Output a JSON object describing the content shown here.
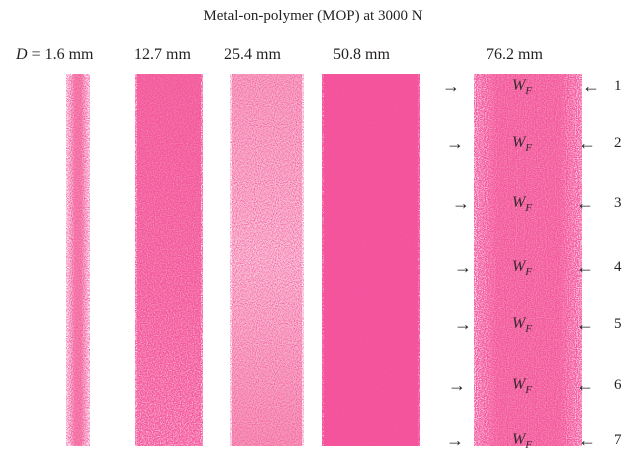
{
  "title": "Metal-on-polymer (MOP) at 3000 N",
  "diameter_labels": [
    {
      "symbol": "D",
      "equals": " = ",
      "value": "1.6 mm"
    },
    {
      "value": "12.7 mm"
    },
    {
      "value": "25.4 mm"
    },
    {
      "value": "50.8 mm"
    },
    {
      "value": "76.2 mm"
    }
  ],
  "wear_marker": {
    "symbol": "W",
    "subscript": "F",
    "left_arrow": "→",
    "right_arrow": "←"
  },
  "marker_numbers": [
    "1",
    "2",
    "3",
    "4",
    "5",
    "6",
    "7"
  ],
  "stain_color": "#e8185a",
  "background_color": "#ffffff"
}
